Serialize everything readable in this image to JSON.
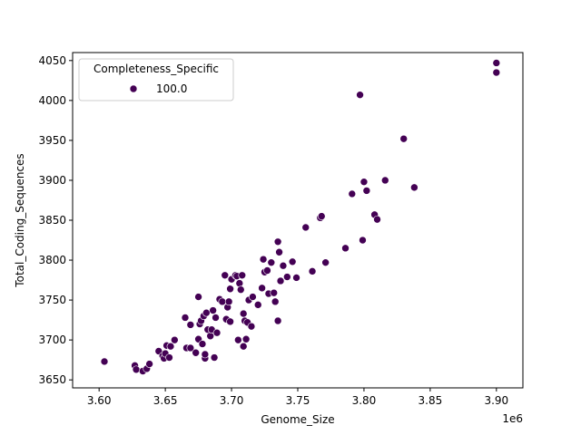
{
  "chart_data": {
    "type": "scatter",
    "xlabel": "Genome_Size",
    "ylabel": "Total_Coding_Sequences",
    "x_offset_label": "1e6",
    "xlim": [
      3.58,
      3.92
    ],
    "ylim": [
      3640,
      4060
    ],
    "x_ticks": [
      3.6,
      3.65,
      3.7,
      3.75,
      3.8,
      3.85,
      3.9
    ],
    "x_tick_labels": [
      "3.60",
      "3.65",
      "3.70",
      "3.75",
      "3.80",
      "3.85",
      "3.90"
    ],
    "y_ticks": [
      3650,
      3700,
      3750,
      3800,
      3850,
      3900,
      3950,
      4000,
      4050
    ],
    "y_tick_labels": [
      "3650",
      "3700",
      "3750",
      "3800",
      "3850",
      "3900",
      "3950",
      "4000",
      "4050"
    ],
    "grid": false,
    "legend": {
      "title": "Completeness_Specific",
      "placement": "top-left",
      "entries": [
        {
          "label": "100.0",
          "color": "#440154"
        }
      ]
    },
    "series": [
      {
        "name": "100.0",
        "color": "#440154",
        "points": [
          [
            3.604,
            3673
          ],
          [
            3.627,
            3668
          ],
          [
            3.628,
            3663
          ],
          [
            3.633,
            3661
          ],
          [
            3.636,
            3664
          ],
          [
            3.638,
            3670
          ],
          [
            3.645,
            3686
          ],
          [
            3.648,
            3680
          ],
          [
            3.649,
            3677
          ],
          [
            3.65,
            3683
          ],
          [
            3.651,
            3693
          ],
          [
            3.653,
            3678
          ],
          [
            3.654,
            3692
          ],
          [
            3.657,
            3700
          ],
          [
            3.665,
            3728
          ],
          [
            3.666,
            3690
          ],
          [
            3.669,
            3690
          ],
          [
            3.669,
            3719
          ],
          [
            3.673,
            3684
          ],
          [
            3.675,
            3754
          ],
          [
            3.675,
            3701
          ],
          [
            3.676,
            3720
          ],
          [
            3.677,
            3724
          ],
          [
            3.678,
            3695
          ],
          [
            3.679,
            3730
          ],
          [
            3.68,
            3677
          ],
          [
            3.68,
            3682
          ],
          [
            3.681,
            3734
          ],
          [
            3.682,
            3713
          ],
          [
            3.684,
            3705
          ],
          [
            3.685,
            3713
          ],
          [
            3.686,
            3737
          ],
          [
            3.687,
            3678
          ],
          [
            3.688,
            3728
          ],
          [
            3.689,
            3709
          ],
          [
            3.691,
            3751
          ],
          [
            3.693,
            3748
          ],
          [
            3.695,
            3781
          ],
          [
            3.696,
            3726
          ],
          [
            3.697,
            3741
          ],
          [
            3.698,
            3748
          ],
          [
            3.699,
            3723
          ],
          [
            3.699,
            3764
          ],
          [
            3.7,
            3776
          ],
          [
            3.703,
            3781
          ],
          [
            3.704,
            3780
          ],
          [
            3.705,
            3700
          ],
          [
            3.706,
            3771
          ],
          [
            3.707,
            3763
          ],
          [
            3.708,
            3781
          ],
          [
            3.709,
            3692
          ],
          [
            3.709,
            3733
          ],
          [
            3.71,
            3724
          ],
          [
            3.711,
            3701
          ],
          [
            3.712,
            3722
          ],
          [
            3.713,
            3750
          ],
          [
            3.715,
            3717
          ],
          [
            3.716,
            3754
          ],
          [
            3.72,
            3744
          ],
          [
            3.723,
            3765
          ],
          [
            3.724,
            3801
          ],
          [
            3.725,
            3785
          ],
          [
            3.727,
            3787
          ],
          [
            3.728,
            3758
          ],
          [
            3.73,
            3797
          ],
          [
            3.732,
            3759
          ],
          [
            3.733,
            3748
          ],
          [
            3.735,
            3724
          ],
          [
            3.735,
            3823
          ],
          [
            3.736,
            3810
          ],
          [
            3.737,
            3774
          ],
          [
            3.739,
            3793
          ],
          [
            3.742,
            3779
          ],
          [
            3.746,
            3798
          ],
          [
            3.749,
            3778
          ],
          [
            3.756,
            3841
          ],
          [
            3.761,
            3786
          ],
          [
            3.767,
            3853
          ],
          [
            3.768,
            3855
          ],
          [
            3.771,
            3797
          ],
          [
            3.786,
            3815
          ],
          [
            3.791,
            3883
          ],
          [
            3.797,
            4007
          ],
          [
            3.799,
            3825
          ],
          [
            3.8,
            3898
          ],
          [
            3.802,
            3887
          ],
          [
            3.808,
            3857
          ],
          [
            3.81,
            3851
          ],
          [
            3.816,
            3900
          ],
          [
            3.83,
            3952
          ],
          [
            3.838,
            3891
          ],
          [
            3.9,
            4047
          ],
          [
            3.9,
            4035
          ]
        ]
      }
    ]
  }
}
